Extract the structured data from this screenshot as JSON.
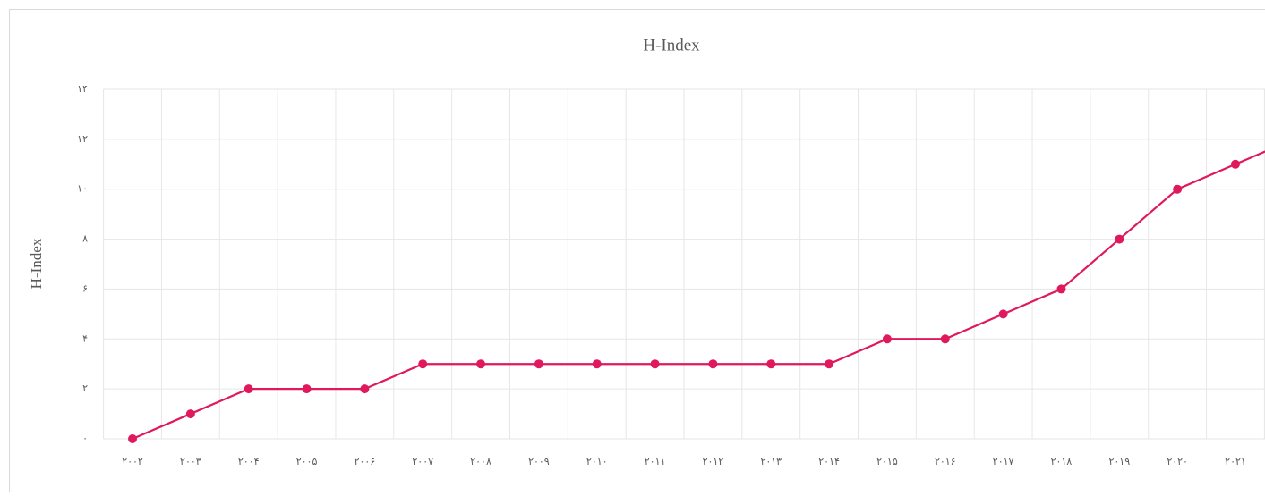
{
  "chart_data": {
    "type": "line",
    "title": "H-Index",
    "y_label": "H-Index",
    "categories": [
      "۲۰۰۲",
      "۲۰۰۳",
      "۲۰۰۴",
      "۲۰۰۵",
      "۲۰۰۶",
      "۲۰۰۷",
      "۲۰۰۸",
      "۲۰۰۹",
      "۲۰۱۰",
      "۲۰۱۱",
      "۲۰۱۲",
      "۲۰۱۳",
      "۲۰۱۴",
      "۲۰۱۵",
      "۲۰۱۶",
      "۲۰۱۷",
      "۲۰۱۸",
      "۲۰۱۹",
      "۲۰۲۰",
      "۲۰۲۱",
      null
    ],
    "series": [
      {
        "name": "H-Index",
        "color": "#e0185e",
        "values": [
          0,
          1,
          2,
          2,
          2,
          3,
          3,
          3,
          3,
          3,
          3,
          3,
          3,
          4,
          4,
          5,
          6,
          8,
          10,
          11,
          12
        ]
      }
    ],
    "ylim": [
      0,
      14
    ],
    "yticks": [
      {
        "value": 0,
        "label": "۰"
      },
      {
        "value": 2,
        "label": "۲"
      },
      {
        "value": 4,
        "label": "۴"
      },
      {
        "value": 6,
        "label": "۶"
      },
      {
        "value": 8,
        "label": "۸"
      },
      {
        "value": 10,
        "label": "۱۰"
      },
      {
        "value": 12,
        "label": "۱۲"
      },
      {
        "value": 14,
        "label": "۱۴"
      }
    ],
    "grid": true
  }
}
